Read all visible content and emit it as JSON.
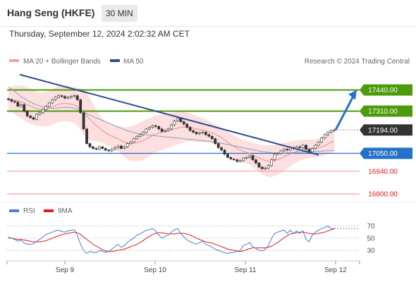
{
  "header": {
    "title": "Hang Seng (HKFE)",
    "timeframe": "30 MIN",
    "datetime": "Thursday, September 12, 2024 2:02:32 AM CET"
  },
  "legend": {
    "bollinger": "MA 20 + Bollinger Bands",
    "ma50": "MA 50",
    "credit": "Research © 2024 Trading Central",
    "rsi": "RSI",
    "rsi_ma": "9MA"
  },
  "colors": {
    "green_level": "#4d9a0b",
    "blue_level": "#2372c9",
    "red_level": "#f2a0a0",
    "bb_fill": "#fbd4d4",
    "ma50": "#2d4f8e",
    "rsi": "#4a7fd4",
    "rsi_ma": "#e01c1c",
    "price_box": "#333333"
  },
  "chart_data": [
    {
      "type": "candlestick",
      "price_range": [
        16770,
        17560
      ],
      "x_ticks": [
        "Sep 9",
        "Sep 10",
        "Sep 11",
        "Sep 12"
      ],
      "levels": [
        {
          "value": 17440,
          "label": "17440.00",
          "kind": "resistance"
        },
        {
          "value": 17310,
          "label": "17310.00",
          "kind": "resistance"
        },
        {
          "value": 17194,
          "label": "17194.00",
          "kind": "last"
        },
        {
          "value": 17050,
          "label": "17050.00",
          "kind": "pivot"
        },
        {
          "value": 16940,
          "label": "16940.00",
          "kind": "support"
        },
        {
          "value": 16800,
          "label": "16800.00",
          "kind": "support"
        }
      ],
      "closes": [
        17380,
        17370,
        17365,
        17340,
        17350,
        17310,
        17280,
        17270,
        17260,
        17290,
        17300,
        17320,
        17340,
        17360,
        17380,
        17395,
        17405,
        17400,
        17390,
        17395,
        17400,
        17405,
        17380,
        17300,
        17200,
        17110,
        17090,
        17080,
        17075,
        17090,
        17080,
        17070,
        17065,
        17075,
        17085,
        17095,
        17080,
        17090,
        17110,
        17120,
        17140,
        17155,
        17165,
        17180,
        17200,
        17210,
        17220,
        17215,
        17200,
        17185,
        17190,
        17200,
        17225,
        17250,
        17265,
        17245,
        17230,
        17210,
        17190,
        17180,
        17170,
        17175,
        17180,
        17165,
        17155,
        17140,
        17110,
        17085,
        17070,
        17045,
        17025,
        17015,
        17010,
        17000,
        17005,
        17020,
        17025,
        17035,
        17010,
        16990,
        16965,
        16955,
        16960,
        16975,
        17010,
        17045,
        17050,
        17065,
        17075,
        17070,
        17085,
        17080,
        17090,
        17085,
        17100,
        17075,
        17060,
        17080,
        17100,
        17120,
        17145,
        17165,
        17180,
        17190,
        17194
      ],
      "ma20": [
        17385,
        17382,
        17378,
        17373,
        17368,
        17360,
        17350,
        17340,
        17332,
        17326,
        17322,
        17320,
        17322,
        17328,
        17336,
        17345,
        17352,
        17356,
        17357,
        17356,
        17353,
        17348,
        17338,
        17322,
        17302,
        17280,
        17260,
        17240,
        17222,
        17205,
        17190,
        17176,
        17165,
        17156,
        17148,
        17140,
        17130,
        17120,
        17112,
        17110,
        17112,
        17116,
        17122,
        17130,
        17140,
        17150,
        17160,
        17168,
        17175,
        17180,
        17184,
        17188,
        17194,
        17200,
        17206,
        17210,
        17212,
        17212,
        17210,
        17206,
        17200,
        17196,
        17192,
        17188,
        17182,
        17176,
        17168,
        17158,
        17146,
        17132,
        17118,
        17104,
        17092,
        17080,
        17070,
        17062,
        17056,
        17050,
        17040,
        17030,
        17020,
        17012,
        17006,
        17002,
        17003,
        17006,
        17012,
        17020,
        17030,
        17038,
        17046,
        17054,
        17062,
        17068,
        17074,
        17076,
        17077,
        17078,
        17080,
        17084,
        17090,
        17098,
        17108,
        17118,
        17126
      ],
      "bb_upper": [
        17450,
        17460,
        17465,
        17468,
        17468,
        17465,
        17458,
        17448,
        17438,
        17430,
        17425,
        17425,
        17428,
        17435,
        17445,
        17455,
        17462,
        17465,
        17466,
        17465,
        17462,
        17458,
        17455,
        17450,
        17440,
        17420,
        17390,
        17355,
        17320,
        17290,
        17265,
        17248,
        17235,
        17228,
        17222,
        17218,
        17215,
        17212,
        17212,
        17216,
        17222,
        17230,
        17240,
        17250,
        17260,
        17268,
        17276,
        17282,
        17286,
        17290,
        17292,
        17294,
        17298,
        17302,
        17306,
        17308,
        17306,
        17302,
        17296,
        17290,
        17282,
        17274,
        17266,
        17258,
        17248,
        17238,
        17228,
        17218,
        17206,
        17194,
        17182,
        17170,
        17160,
        17150,
        17140,
        17132,
        17126,
        17120,
        17115,
        17110,
        17106,
        17102,
        17100,
        17100,
        17100,
        17102,
        17106,
        17110,
        17114,
        17118,
        17122,
        17126,
        17130,
        17132,
        17134,
        17134,
        17134,
        17134,
        17136,
        17140,
        17148,
        17158,
        17170,
        17182,
        17192
      ],
      "bb_lower": [
        17320,
        17304,
        17291,
        17278,
        17268,
        17255,
        17242,
        17232,
        17226,
        17222,
        17219,
        17215,
        17216,
        17221,
        17227,
        17235,
        17242,
        17247,
        17248,
        17247,
        17244,
        17238,
        17221,
        17194,
        17164,
        17140,
        17130,
        17125,
        17124,
        17120,
        17115,
        17104,
        17095,
        17084,
        17074,
        17062,
        17045,
        17028,
        17012,
        17004,
        17002,
        17002,
        17004,
        17010,
        17020,
        17032,
        17044,
        17054,
        17064,
        17070,
        17076,
        17082,
        17090,
        17098,
        17106,
        17112,
        17118,
        17122,
        17124,
        17122,
        17118,
        17118,
        17118,
        17118,
        17116,
        17114,
        17108,
        17098,
        17086,
        17070,
        17054,
        17038,
        17024,
        17010,
        17000,
        16992,
        16986,
        16980,
        16965,
        16950,
        16934,
        16922,
        16912,
        16904,
        16906,
        16910,
        16918,
        16930,
        16946,
        16958,
        16970,
        16982,
        16994,
        17004,
        17014,
        17018,
        17020,
        17022,
        17024,
        17028,
        17032,
        17038,
        17046,
        17054,
        17060
      ],
      "ma50": [
        17460,
        17445,
        17430,
        17415,
        17400,
        17388,
        17376,
        17366,
        17356,
        17348,
        17342,
        17336,
        17332,
        17330,
        17328,
        17328,
        17330,
        17332,
        17334,
        17334,
        17332,
        17328,
        17322,
        17314,
        17305,
        17295,
        17285,
        17276,
        17268,
        17260,
        17252,
        17244,
        17236,
        17228,
        17220,
        17212,
        17204,
        17196,
        17189,
        17183,
        17178,
        17174,
        17170,
        17167,
        17164,
        17162,
        17160,
        17158,
        17156,
        17154,
        17152,
        17150,
        17148,
        17146,
        17144,
        17142,
        17140,
        17138,
        17136,
        17134,
        17132,
        17130,
        17128,
        17126,
        17124,
        17121,
        17118,
        17115,
        17112,
        17108,
        17104,
        17100,
        17096,
        17092,
        17088,
        17084,
        17080,
        17076,
        17072,
        17068,
        17064,
        17061,
        17058,
        17056,
        17054,
        17053,
        17052,
        17052,
        17052,
        17053,
        17054,
        17055,
        17056,
        17057,
        17058,
        17059,
        17060,
        17061,
        17062,
        17063,
        17064,
        17065,
        17066,
        17067,
        17068
      ],
      "trendline": {
        "from": 17535,
        "to": 17040
      },
      "projection": {
        "from": 17194,
        "to": 17440
      }
    },
    {
      "type": "line",
      "name": "RSI",
      "y_ticks": [
        70,
        50,
        30
      ],
      "ylim": [
        15,
        80
      ],
      "rsi": [
        52,
        50,
        48,
        45,
        47,
        42,
        40,
        40,
        41,
        45,
        48,
        52,
        56,
        58,
        60,
        62,
        63,
        61,
        60,
        62,
        63,
        64,
        55,
        40,
        30,
        25,
        28,
        27,
        26,
        30,
        28,
        27,
        28,
        32,
        36,
        40,
        35,
        38,
        43,
        47,
        50,
        55,
        57,
        60,
        63,
        64,
        66,
        62,
        55,
        50,
        53,
        55,
        60,
        64,
        66,
        58,
        52,
        47,
        44,
        42,
        40,
        43,
        45,
        40,
        38,
        35,
        32,
        30,
        28,
        26,
        25,
        26,
        27,
        28,
        30,
        38,
        40,
        43,
        36,
        33,
        30,
        29,
        32,
        38,
        50,
        58,
        60,
        62,
        63,
        58,
        63,
        58,
        62,
        58,
        62,
        48,
        44,
        55,
        60,
        63,
        66,
        68,
        70,
        66,
        66
      ],
      "rsi_ma": [
        50,
        50,
        49,
        48,
        48,
        47,
        46,
        45,
        44,
        44,
        44,
        45,
        46,
        48,
        50,
        52,
        54,
        56,
        57,
        58,
        59,
        60,
        59,
        56,
        52,
        48,
        44,
        40,
        37,
        34,
        31,
        29,
        28,
        28,
        29,
        30,
        31,
        32,
        34,
        36,
        38,
        40,
        43,
        46,
        50,
        53,
        56,
        58,
        59,
        59,
        58,
        57,
        57,
        57,
        58,
        58,
        58,
        57,
        55,
        53,
        50,
        48,
        46,
        44,
        43,
        42,
        40,
        38,
        36,
        34,
        32,
        31,
        30,
        29,
        28,
        29,
        31,
        33,
        34,
        34,
        34,
        34,
        34,
        35,
        37,
        40,
        43,
        47,
        51,
        54,
        57,
        58,
        59,
        60,
        60,
        59,
        58,
        57,
        57,
        58,
        59,
        60,
        62,
        64,
        65
      ]
    }
  ]
}
